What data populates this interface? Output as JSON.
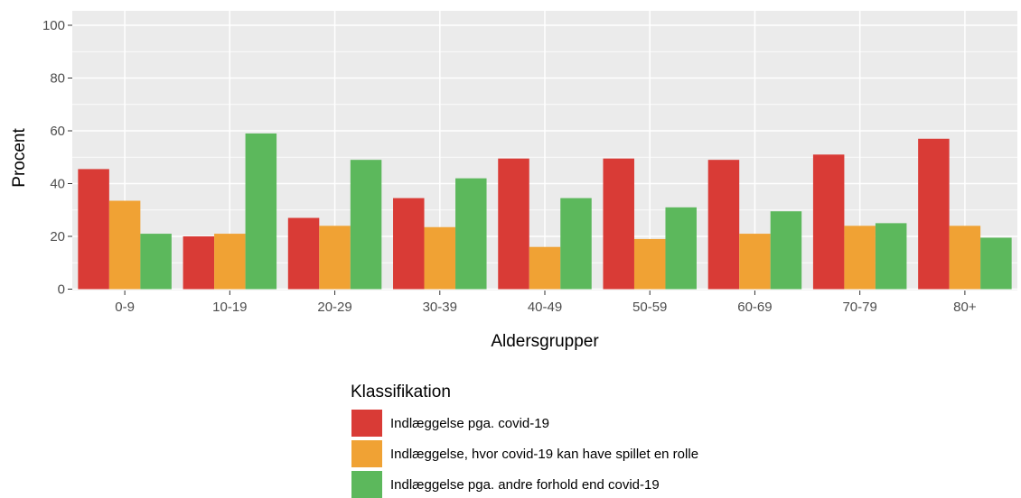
{
  "chart_data": {
    "type": "bar",
    "xlabel": "Aldersgrupper",
    "ylabel": "Procent",
    "ylim": [
      0,
      100
    ],
    "yticks": [
      0,
      20,
      40,
      60,
      80,
      100
    ],
    "grid": true,
    "legend_position": "bottom",
    "legend_title": "Klassifikation",
    "categories": [
      "0-9",
      "10-19",
      "20-29",
      "30-39",
      "40-49",
      "50-59",
      "60-69",
      "70-79",
      "80+"
    ],
    "series": [
      {
        "name": "Indlæggelse pga. covid-19",
        "color": "#d93b36",
        "values": [
          45.5,
          20,
          27,
          34.5,
          49.5,
          49.5,
          49,
          51,
          57
        ]
      },
      {
        "name": "Indlæggelse, hvor covid-19 kan have spillet en rolle",
        "color": "#f0a234",
        "values": [
          33.5,
          21,
          24,
          23.5,
          16,
          19,
          21,
          24,
          24
        ]
      },
      {
        "name": "Indlæggelse pga. andre forhold end covid-19",
        "color": "#5cb85c",
        "values": [
          21,
          59,
          49,
          42,
          34.5,
          31,
          29.5,
          25,
          19.5
        ]
      }
    ]
  }
}
